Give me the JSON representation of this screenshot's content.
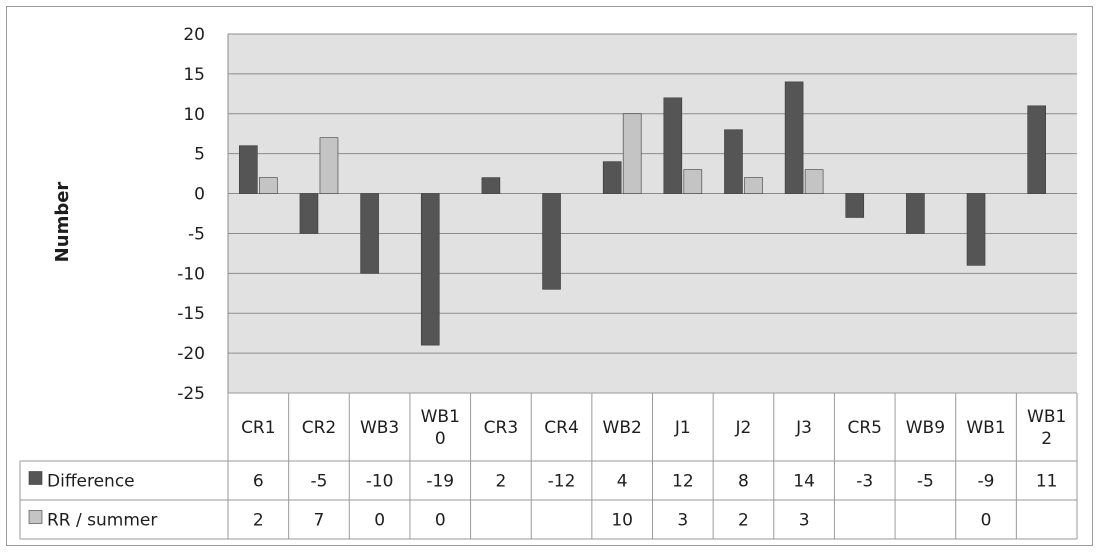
{
  "chart_data": {
    "type": "bar",
    "ylabel": "Number",
    "ylim": [
      -25,
      20
    ],
    "yticks": [
      20,
      15,
      10,
      5,
      0,
      -5,
      -10,
      -15,
      -20,
      -25
    ],
    "grid": true,
    "legend": "data-table-left",
    "categories": [
      [
        "CR1"
      ],
      [
        "CR2"
      ],
      [
        "WB3"
      ],
      [
        "WB1",
        "0"
      ],
      [
        "CR3"
      ],
      [
        "CR4"
      ],
      [
        "WB2"
      ],
      [
        "J1"
      ],
      [
        "J2"
      ],
      [
        "J3"
      ],
      [
        "CR5"
      ],
      [
        "WB9"
      ],
      [
        "WB1"
      ],
      [
        "WB1",
        "2"
      ]
    ],
    "series": [
      {
        "name": "Difference",
        "color": "#555555",
        "values": [
          6,
          -5,
          -10,
          -19,
          2,
          -12,
          4,
          12,
          8,
          14,
          -3,
          -5,
          -9,
          11
        ],
        "labels": [
          "6",
          "-5",
          "-10",
          "-19",
          "2",
          "-12",
          "4",
          "12",
          "8",
          "14",
          "-3",
          "-5",
          "-9",
          "11"
        ]
      },
      {
        "name": "RR / summer",
        "color": "#c4c4c4",
        "values": [
          2,
          7,
          0,
          0,
          null,
          null,
          10,
          3,
          2,
          3,
          null,
          null,
          0,
          null
        ],
        "labels": [
          "2",
          "7",
          "0",
          "0",
          "",
          "",
          "10",
          "3",
          "2",
          "3",
          "",
          "",
          "0",
          ""
        ]
      }
    ]
  }
}
